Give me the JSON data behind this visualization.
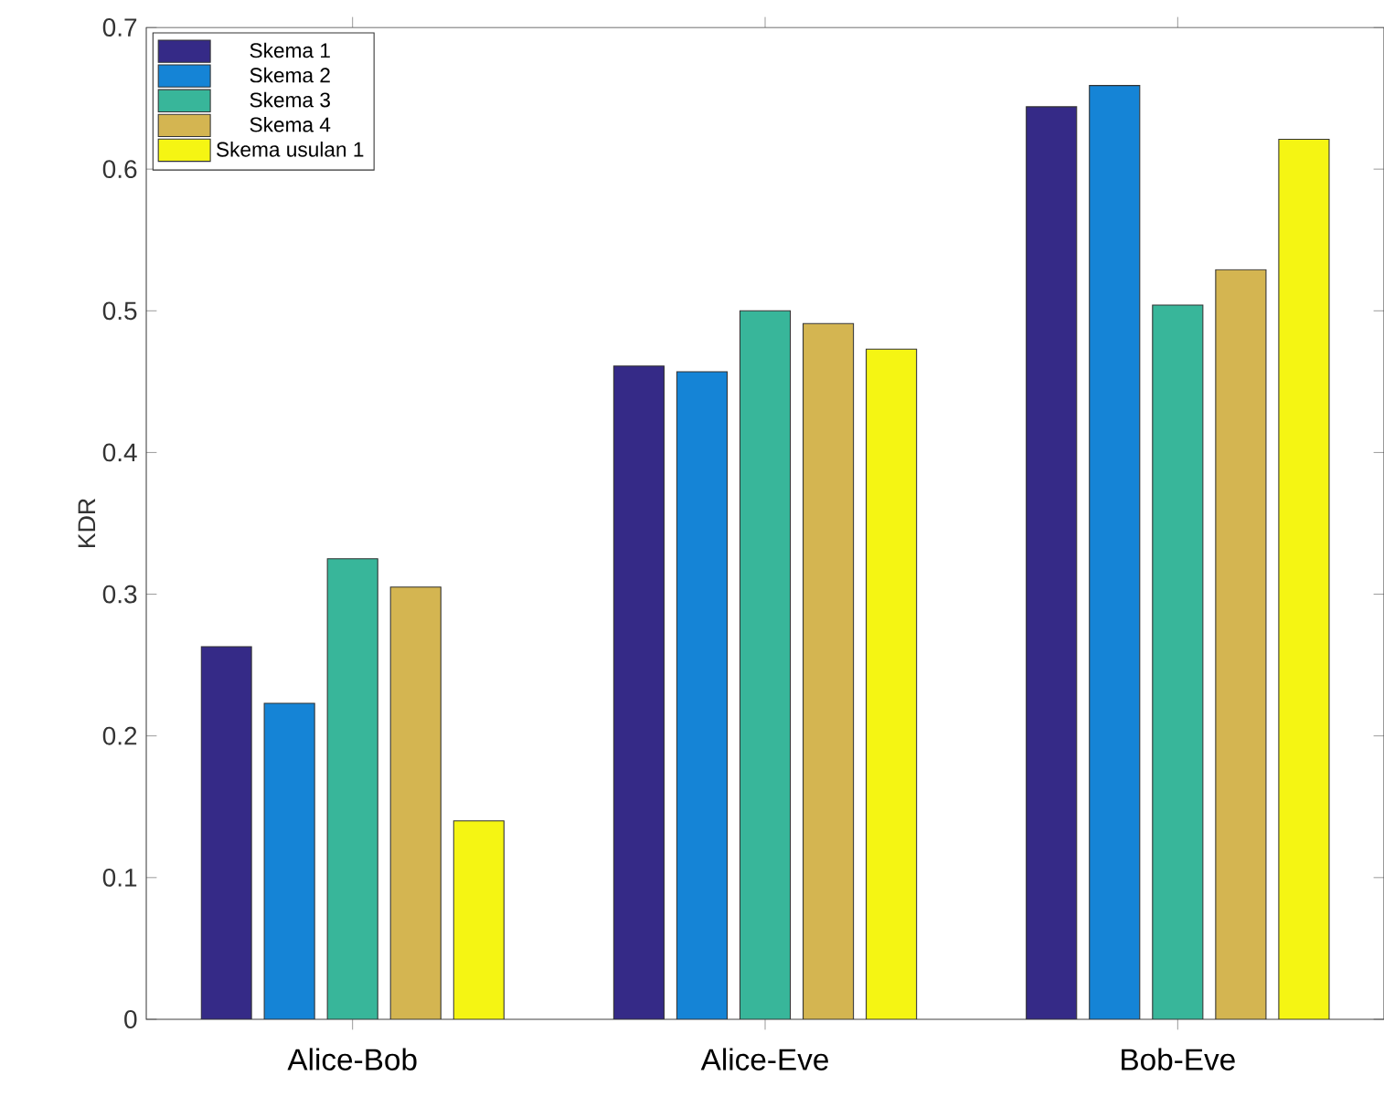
{
  "chart_data": {
    "type": "bar",
    "ylabel": "KDR",
    "categories": [
      "Alice-Bob",
      "Alice-Eve",
      "Bob-Eve"
    ],
    "series": [
      {
        "name": "Skema 1",
        "color": "#352a87",
        "values": [
          0.263,
          0.461,
          0.644
        ]
      },
      {
        "name": "Skema 2",
        "color": "#1584d6",
        "values": [
          0.223,
          0.457,
          0.659
        ]
      },
      {
        "name": "Skema 3",
        "color": "#38b69a",
        "values": [
          0.325,
          0.5,
          0.504
        ]
      },
      {
        "name": "Skema 4",
        "color": "#d4b551",
        "values": [
          0.305,
          0.491,
          0.529
        ]
      },
      {
        "name": "Skema usulan 1",
        "color": "#f5f513",
        "values": [
          0.14,
          0.473,
          0.621
        ]
      }
    ],
    "ylim": [
      0,
      0.7
    ],
    "yticks": [
      0,
      0.1,
      0.2,
      0.3,
      0.4,
      0.5,
      0.6,
      0.7
    ],
    "grid": false,
    "legend": "top left"
  }
}
